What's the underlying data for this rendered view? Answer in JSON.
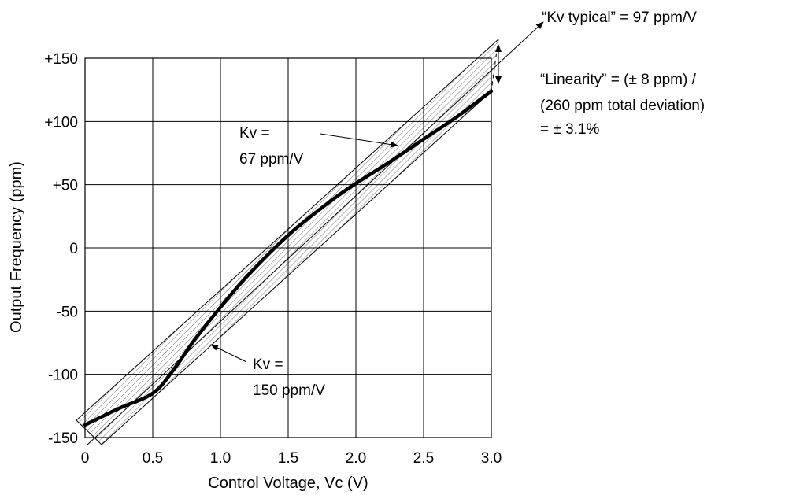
{
  "chart_data": {
    "type": "line",
    "xlabel": "Control Voltage, Vc (V)",
    "ylabel": "Output Frequency (ppm)",
    "xlim": [
      0,
      3.0
    ],
    "ylim": [
      -150,
      150
    ],
    "x_ticks": [
      "0",
      "0.5",
      "1.0",
      "1.5",
      "2.0",
      "2.5",
      "3.0"
    ],
    "y_ticks": [
      "+150",
      "+100",
      "+50",
      "0",
      "-50",
      "-100",
      "-150"
    ],
    "grid": true,
    "series": [
      {
        "x": [
          0,
          0.25,
          0.5,
          0.65,
          0.8,
          1.0,
          1.2,
          1.5,
          1.8,
          2.0,
          2.25,
          2.5,
          2.75,
          3.0
        ],
        "y": [
          -140,
          -127,
          -115,
          -97,
          -74,
          -47,
          -22,
          10,
          36,
          51,
          68,
          86,
          104,
          124
        ]
      }
    ],
    "annotations": {
      "kv_typical": "“Kv typical” = 97 ppm/V",
      "linearity_line1": "“Linearity” = (± 8 ppm) /",
      "linearity_line2": "(260 ppm total deviation)",
      "linearity_line3": "= ± 3.1%",
      "kv_upper_line1": "Kv =",
      "kv_upper_line2": "67 ppm/V",
      "kv_lower_line1": "Kv =",
      "kv_lower_line2": "150 ppm/V"
    }
  }
}
